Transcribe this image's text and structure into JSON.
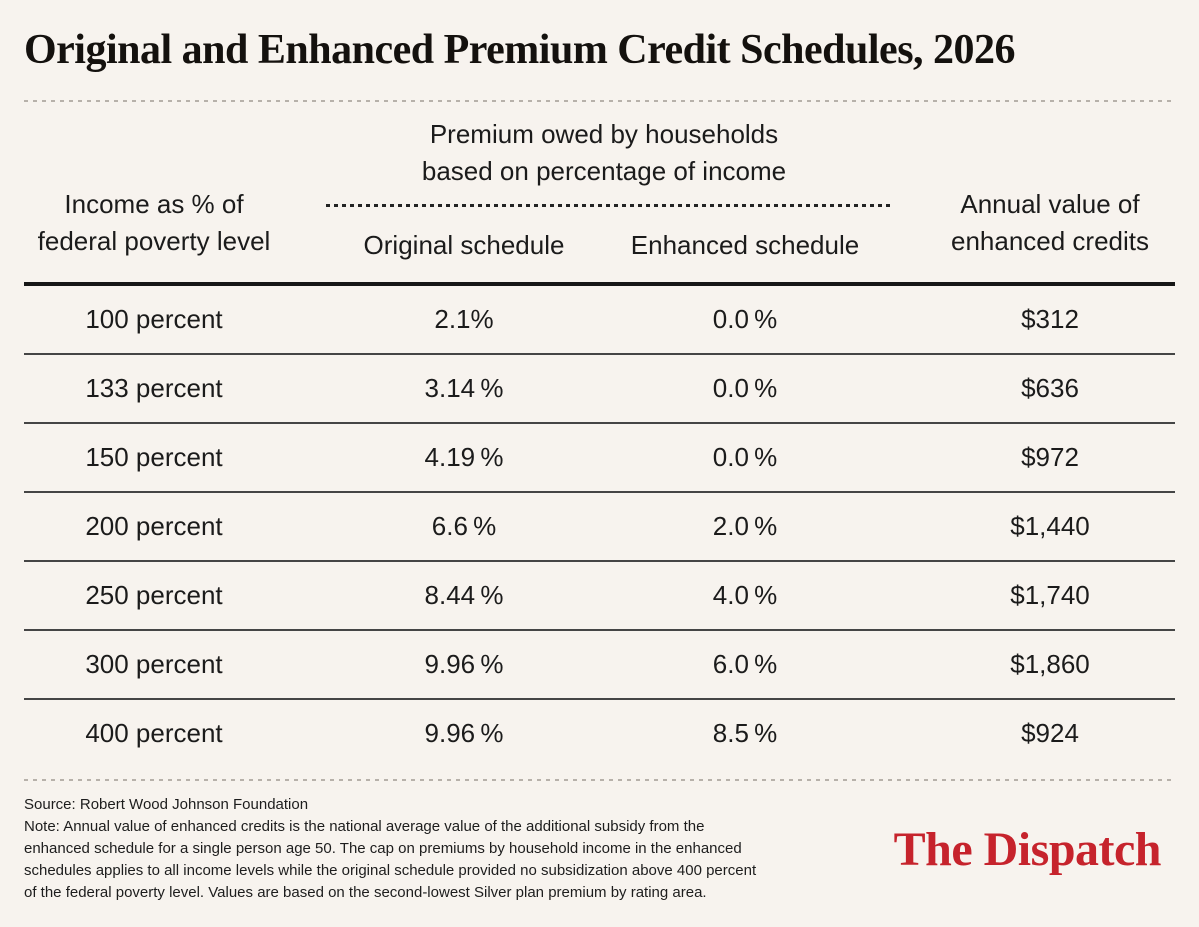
{
  "colors": {
    "background": "#f7f3ee",
    "brand_red": "#c6232c",
    "text": "#1b1b1b",
    "divider_gray": "#b7b1aa",
    "rule_black": "#161616"
  },
  "title": "Original and Enhanced Premium Credit Schedules, 2026",
  "table": {
    "income_header": "Income as % of\nfederal poverty level",
    "group_header": "Premium owed by households\nbased on percentage of income",
    "schedule_columns": [
      "Original schedule",
      "Enhanced schedule"
    ],
    "value_header": "Annual value of\nenhanced credits",
    "rows": [
      {
        "income": "100 percent",
        "original": "2.1%",
        "enhanced": "0.0 %",
        "value": "$312"
      },
      {
        "income": "133 percent",
        "original": "3.14 %",
        "enhanced": "0.0 %",
        "value": "$636"
      },
      {
        "income": "150 percent",
        "original": "4.19 %",
        "enhanced": "0.0 %",
        "value": "$972"
      },
      {
        "income": "200 percent",
        "original": "6.6 %",
        "enhanced": "2.0 %",
        "value": "$1,440"
      },
      {
        "income": "250 percent",
        "original": "8.44 %",
        "enhanced": "4.0 %",
        "value": "$1,740"
      },
      {
        "income": "300 percent",
        "original": "9.96 %",
        "enhanced": "6.0 %",
        "value": "$1,860"
      },
      {
        "income": "400 percent",
        "original": "9.96 %",
        "enhanced": "8.5 %",
        "value": "$924"
      }
    ]
  },
  "footer": {
    "source": "Source: Robert Wood Johnson Foundation",
    "note_lines": [
      "Note: Annual value of enhanced credits is the national average value of the additional subsidy from the",
      "enhanced schedule for a single person age 50. The cap on premiums by household income in the enhanced",
      "schedules applies to all income levels while the original schedule provided no subsidization above 400 percent",
      "of the federal poverty level. Values are based on the second-lowest Silver plan premium by rating area."
    ],
    "logo": "The Dispatch"
  },
  "chart_data": {
    "type": "table",
    "title": "Original and Enhanced Premium Credit Schedules, 2026",
    "columns": [
      "Income as % of federal poverty level",
      "Original schedule premium owed (% of income)",
      "Enhanced schedule premium owed (% of income)",
      "Annual value of enhanced credits (USD)"
    ],
    "rows": [
      [
        100,
        2.1,
        0.0,
        312
      ],
      [
        133,
        3.14,
        0.0,
        636
      ],
      [
        150,
        4.19,
        0.0,
        972
      ],
      [
        200,
        6.6,
        2.0,
        1440
      ],
      [
        250,
        8.44,
        4.0,
        1740
      ],
      [
        300,
        9.96,
        6.0,
        1860
      ],
      [
        400,
        9.96,
        8.5,
        924
      ]
    ],
    "source": "Robert Wood Johnson Foundation"
  }
}
